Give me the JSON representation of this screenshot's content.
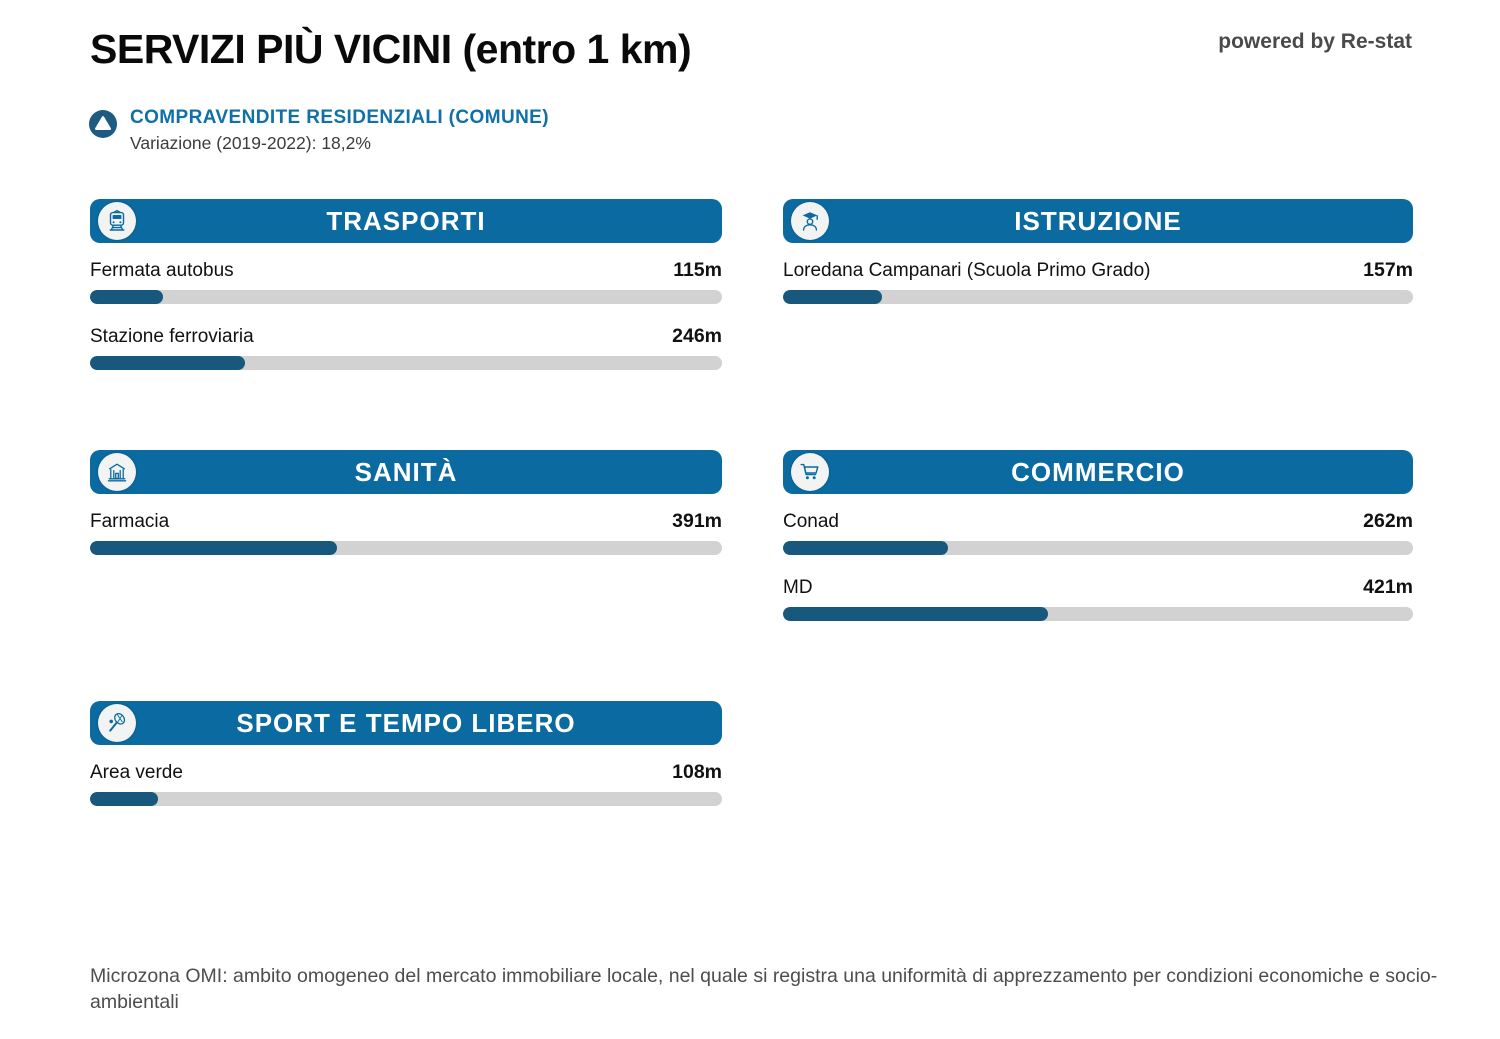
{
  "page": {
    "title": "SERVIZI PIÙ VICINI (entro 1 km)",
    "powered_by": "powered by Re-stat",
    "footnote": "Microzona OMI: ambito omogeneo del mercato immobiliare locale, nel quale si registra una uniformità di apprezzamento per condizioni economiche e socio-ambientali"
  },
  "summary": {
    "title": "COMPRAVENDITE RESIDENZIALI (COMUNE)",
    "subtitle": "Variazione (2019-2022): 18,2%",
    "icon": "up-triangle-icon"
  },
  "scale": {
    "max_m": 1000
  },
  "colors": {
    "header_blue": "#0B6AA0",
    "bar_fill": "#17587C",
    "bar_track": "#D2D2D2",
    "accent_text_blue": "#1070A8",
    "summary_icon_blue": "#1D5C80"
  },
  "sections": [
    {
      "id": "trasporti",
      "title": "TRASPORTI",
      "icon": "train-icon",
      "items": [
        {
          "name": "Fermata autobus",
          "value": 115,
          "distance_label": "115m"
        },
        {
          "name": "Stazione ferroviaria",
          "value": 246,
          "distance_label": "246m"
        }
      ]
    },
    {
      "id": "istruzione",
      "title": "ISTRUZIONE",
      "icon": "graduate-icon",
      "items": [
        {
          "name": "Loredana Campanari (Scuola Primo Grado)",
          "value": 157,
          "distance_label": "157m"
        }
      ]
    },
    {
      "id": "sanita",
      "title": "SANITÀ",
      "icon": "hospital-icon",
      "items": [
        {
          "name": "Farmacia",
          "value": 391,
          "distance_label": "391m"
        }
      ]
    },
    {
      "id": "commercio",
      "title": "COMMERCIO",
      "icon": "cart-icon",
      "items": [
        {
          "name": "Conad",
          "value": 262,
          "distance_label": "262m"
        },
        {
          "name": "MD",
          "value": 421,
          "distance_label": "421m"
        }
      ]
    },
    {
      "id": "sport",
      "title": "SPORT E TEMPO LIBERO",
      "icon": "tennis-racket-icon",
      "items": [
        {
          "name": "Area verde",
          "value": 108,
          "distance_label": "108m"
        }
      ]
    }
  ],
  "chart_data": [
    {
      "type": "bar",
      "title": "TRASPORTI",
      "orientation": "horizontal",
      "categories": [
        "Fermata autobus",
        "Stazione ferroviaria"
      ],
      "values": [
        115,
        246
      ],
      "unit": "m",
      "xlim": [
        0,
        1000
      ]
    },
    {
      "type": "bar",
      "title": "ISTRUZIONE",
      "orientation": "horizontal",
      "categories": [
        "Loredana Campanari (Scuola Primo Grado)"
      ],
      "values": [
        157
      ],
      "unit": "m",
      "xlim": [
        0,
        1000
      ]
    },
    {
      "type": "bar",
      "title": "SANITÀ",
      "orientation": "horizontal",
      "categories": [
        "Farmacia"
      ],
      "values": [
        391
      ],
      "unit": "m",
      "xlim": [
        0,
        1000
      ]
    },
    {
      "type": "bar",
      "title": "COMMERCIO",
      "orientation": "horizontal",
      "categories": [
        "Conad",
        "MD"
      ],
      "values": [
        262,
        421
      ],
      "unit": "m",
      "xlim": [
        0,
        1000
      ]
    },
    {
      "type": "bar",
      "title": "SPORT E TEMPO LIBERO",
      "orientation": "horizontal",
      "categories": [
        "Area verde"
      ],
      "values": [
        108
      ],
      "unit": "m",
      "xlim": [
        0,
        1000
      ]
    }
  ]
}
